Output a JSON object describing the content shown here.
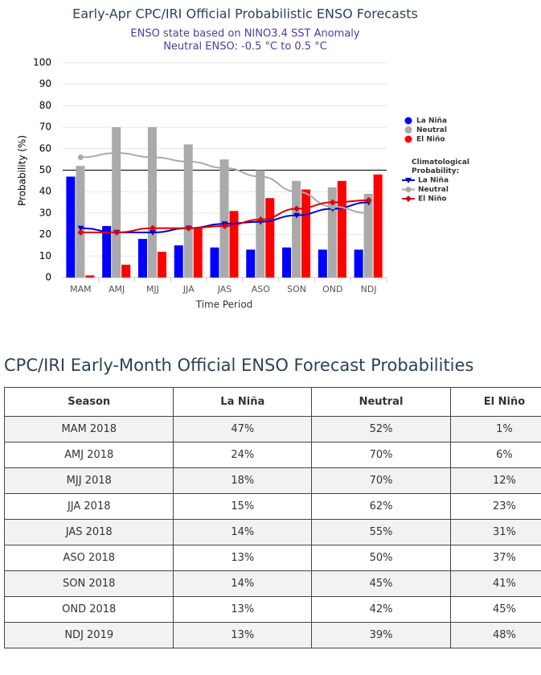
{
  "chart_data": {
    "type": "bar",
    "title": "Early-Apr CPC/IRI Official Probabilistic ENSO Forecasts",
    "subtitle": [
      "ENSO state based on NINO3.4 SST Anomaly",
      "Neutral ENSO: -0.5 °C to 0.5 °C"
    ],
    "x_label": "Time Period",
    "y_label": "Probability (%)",
    "categories": [
      "MAM",
      "AMJ",
      "MJJ",
      "JJA",
      "JAS",
      "ASO",
      "SON",
      "OND",
      "NDJ"
    ],
    "ylim": [
      0,
      100
    ],
    "yticks": [
      0,
      10,
      20,
      30,
      40,
      50,
      60,
      70,
      80,
      90,
      100
    ],
    "grid": true,
    "reference_line": 50,
    "legend_title": "Climatological Probability:",
    "series": [
      {
        "name": "La Niña",
        "color": "#0000ff",
        "type": "bar",
        "values": [
          47,
          24,
          18,
          15,
          14,
          13,
          14,
          13,
          13
        ]
      },
      {
        "name": "Neutral",
        "color": "#aaaaaa",
        "type": "bar",
        "values": [
          52,
          70,
          70,
          62,
          55,
          50,
          45,
          42,
          39
        ]
      },
      {
        "name": "El Niño",
        "color": "#ff0000",
        "type": "bar",
        "values": [
          1,
          6,
          12,
          23,
          31,
          37,
          41,
          45,
          48
        ]
      },
      {
        "name": "La Niña",
        "color": "#0000cc",
        "type": "line",
        "marker": "triangle-down",
        "values": [
          23,
          21,
          21,
          23,
          25,
          26,
          29,
          32,
          35
        ]
      },
      {
        "name": "Neutral",
        "color": "#aaaaaa",
        "type": "line",
        "marker": "circle",
        "values": [
          56,
          58,
          56,
          54,
          51,
          47,
          40,
          33,
          30
        ]
      },
      {
        "name": "El Niño",
        "color": "#dd0000",
        "type": "line",
        "marker": "diamond",
        "values": [
          21,
          21,
          23,
          23,
          24,
          27,
          32,
          35,
          36
        ]
      }
    ]
  },
  "table": {
    "title": "CPC/IRI Early-Month Official ENSO Forecast Probabilities",
    "columns": [
      "Season",
      "La Niña",
      "Neutral",
      "El Niño"
    ],
    "rows": [
      [
        "MAM 2018",
        "47%",
        "52%",
        "1%"
      ],
      [
        "AMJ 2018",
        "24%",
        "70%",
        "6%"
      ],
      [
        "MJJ 2018",
        "18%",
        "70%",
        "12%"
      ],
      [
        "JJA 2018",
        "15%",
        "62%",
        "23%"
      ],
      [
        "JAS 2018",
        "14%",
        "55%",
        "31%"
      ],
      [
        "ASO 2018",
        "13%",
        "50%",
        "37%"
      ],
      [
        "SON 2018",
        "14%",
        "45%",
        "41%"
      ],
      [
        "OND 2018",
        "13%",
        "42%",
        "45%"
      ],
      [
        "NDJ 2019",
        "13%",
        "39%",
        "48%"
      ]
    ]
  }
}
